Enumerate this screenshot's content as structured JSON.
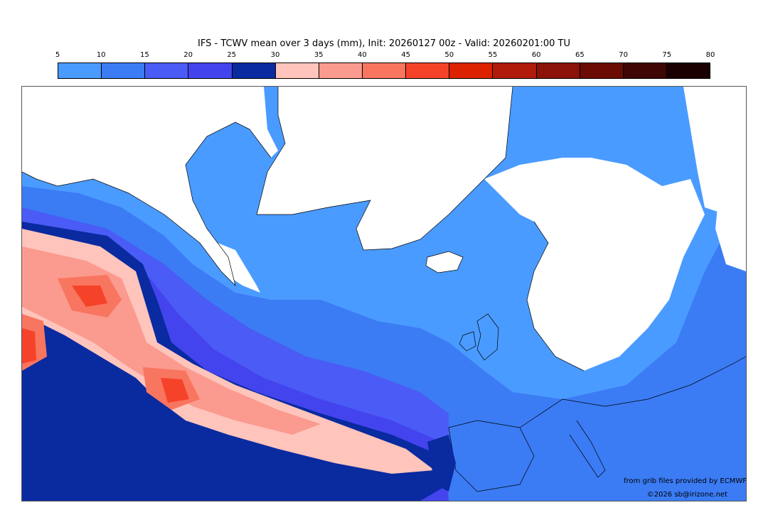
{
  "title": "IFS - TCWV mean over 3 days (mm), Init: 20260127 00z - Valid: 20260201:00 TU",
  "colorbar": {
    "ticks": [
      "5",
      "10",
      "15",
      "20",
      "25",
      "30",
      "35",
      "40",
      "45",
      "50",
      "55",
      "60",
      "65",
      "70",
      "75",
      "80"
    ],
    "colors": [
      "#4a9bff",
      "#3b7cf5",
      "#4a5cf5",
      "#4444ee",
      "#0a2aa0",
      "#ffc4bc",
      "#fb9a8e",
      "#f8755f",
      "#f5432a",
      "#dd2200",
      "#b01a0a",
      "#8a1208",
      "#6a0c04",
      "#3e0604",
      "#1a0000"
    ]
  },
  "map": {
    "variable": "TCWV",
    "units": "mm"
  },
  "credits": {
    "source": "from grib files provided by ECMWF",
    "copyright": "©2026 sb@irizone.net"
  }
}
